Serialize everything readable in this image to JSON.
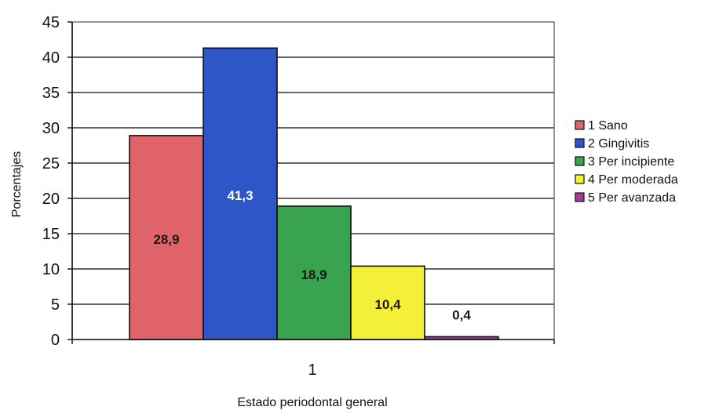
{
  "chart_data": {
    "type": "bar",
    "categories": [
      "1"
    ],
    "series": [
      {
        "name": "1 Sano",
        "values": [
          28.9
        ],
        "label": "28,9",
        "color": "#e0636a",
        "label_color": "#1a1a1a"
      },
      {
        "name": "2 Gingivitis",
        "values": [
          41.3
        ],
        "label": "41,3",
        "color": "#2f56c8",
        "label_color": "#ffffff"
      },
      {
        "name": "3 Per incipiente",
        "values": [
          18.9
        ],
        "label": "18,9",
        "color": "#3aa34f",
        "label_color": "#1a1a1a"
      },
      {
        "name": "4 Per moderada",
        "values": [
          10.4
        ],
        "label": "10,4",
        "color": "#f4f03a",
        "label_color": "#1a1a1a"
      },
      {
        "name": "5 Per avanzada",
        "values": [
          0.4
        ],
        "label": "0,4",
        "color": "#a23b9a",
        "label_color": "#1a1a1a"
      }
    ],
    "ylabel": "Porcentajes",
    "xlabel": "Estado periodontal general",
    "ylim": [
      0,
      45
    ],
    "yticks": [
      "0",
      "5",
      "10",
      "15",
      "20",
      "25",
      "30",
      "35",
      "40",
      "45"
    ],
    "grid": true,
    "legend_position": "right"
  }
}
